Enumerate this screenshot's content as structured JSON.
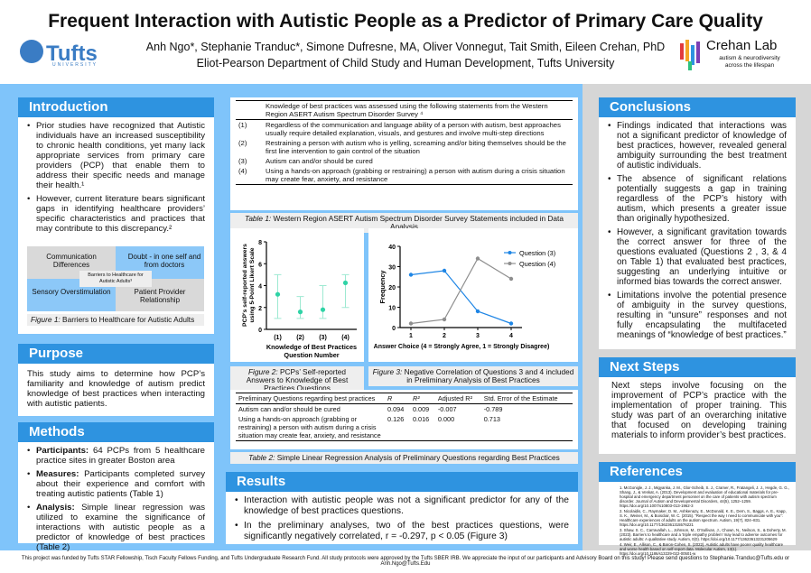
{
  "header": {
    "title": "Frequent Interaction with Autistic People as a Predictor of Primary Care Quality",
    "authors": "Anh Ngo*, Stephanie Tranduc*, Simone Dufresne, MA, Oliver Vonnegut, Tait Smith, Eileen Crehan, PhD",
    "department": "Eliot-Pearson Department of Child Study and Human Development, Tufts University",
    "tufts_logo": "Tufts",
    "tufts_sub": "UNIVERSITY",
    "lab_name": "Crehan Lab",
    "lab_tagline": "autism & neurodiversity across the lifespan"
  },
  "introduction": {
    "title": "Introduction",
    "bullets": [
      "Prior studies have recognized that Autistic individuals have an increased susceptibility to chronic health conditions, yet many lack appropriate services from primary care providers (PCP) that enable them to address their specific needs and manage their health.¹",
      "However, current literature bears significant gaps in identifying healthcare providers’ specific characteristics and practices that may contribute to this discrepancy.²"
    ],
    "figure": {
      "tl": "Communication Differences",
      "tr": "Doubt - in one self and from doctors",
      "center": "Barriers to Healthcare for Autistic Adults³",
      "bl": "Sensory Overstimulation",
      "br": "Patient Provider Relationship"
    },
    "caption_label": "Figure 1:",
    "caption": " Barriers to Healthcare for Autistic Adults"
  },
  "purpose": {
    "title": "Purpose",
    "text": "This study aims to determine how PCP’s familiarity and knowledge of autism predict knowledge of best practices when interacting with autistic patients."
  },
  "methods": {
    "title": "Methods",
    "items": [
      {
        "label": "Participants:",
        "text": " 64 PCPs from 5 healthcare practice sites in greater Boston area"
      },
      {
        "label": "Measures:",
        "text": " Participants completed survey about their experience and comfort with treating autistic patients (Table 1)"
      },
      {
        "label": "Analysis:",
        "text": " Simple linear regression was utilized to examine the significance of interactions with autistic people as a predictor of knowledge of best practices (Table 2)"
      }
    ]
  },
  "table1": {
    "header": "Knowledge of best practices was assessed using the following statements from the Western Region ASERT Autism Spectrum Disorder Survey ⁴",
    "rows": [
      {
        "n": "(1)",
        "t": "Regardless of the communication and language ability of a person with autism, best approaches usually require detailed explanation, visuals, and gestures and involve multi-step directions"
      },
      {
        "n": "(2)",
        "t": "Restraining a person with autism who is yelling, screaming and/or biting themselves should be the first line intervention to gain control of the situation"
      },
      {
        "n": "(3)",
        "t": "Autism can and/or should be cured"
      },
      {
        "n": "(4)",
        "t": "Using a hands-on approach (grabbing or restraining) a person with autism during a crisis situation may create fear, anxiety, and resistance"
      }
    ],
    "caption_label": "Table 1:",
    "caption": " Western Region ASERT Autism Spectrum Disorder Survey Statements included in Data Analysis"
  },
  "chart_data": [
    {
      "type": "scatter",
      "title": "",
      "ylabel": "PCP's self-reported answers using 5-Point Likert Scale",
      "xlabel": "Knowledge of Best Practices Question Number",
      "categories": [
        "(1)",
        "(2)",
        "(3)",
        "(4)"
      ],
      "values": [
        3.2,
        1.6,
        1.8,
        4.25
      ],
      "error_low": [
        1,
        1,
        1,
        2
      ],
      "error_high": [
        5,
        3,
        4,
        5
      ],
      "ylim": [
        0,
        8
      ],
      "yticks": [
        "0",
        "2",
        "4",
        "6",
        "8"
      ],
      "color": "#2fd3a6"
    },
    {
      "type": "line",
      "title": "",
      "ylabel": "Frequency",
      "xlabel": "Answer Choice (4 = Strongly Agree, 1 = Strongly Disagree)",
      "x": [
        1,
        2,
        3,
        4
      ],
      "xticks": [
        "1",
        "2",
        "3",
        "4"
      ],
      "ylim": [
        0,
        40
      ],
      "yticks": [
        "0",
        "10",
        "20",
        "30",
        "40"
      ],
      "legend": "top-right",
      "series": [
        {
          "name": "Question (3)",
          "values": [
            26,
            28,
            8,
            2
          ],
          "color": "#1f86e5"
        },
        {
          "name": "Question (4)",
          "values": [
            2,
            4,
            34,
            24
          ],
          "color": "#8e8e8e"
        }
      ]
    }
  ],
  "fig2": {
    "caption_label": "Figure 2:",
    "caption": " PCPs’ Self-reported Answers to Knowledge of Best Practices Questions"
  },
  "fig3": {
    "caption_label": "Figure 3:",
    "caption": " Negative Correlation of Questions 3 and 4 included in Preliminary Analysis of Best Practices"
  },
  "table2": {
    "headers": [
      "Preliminary Questions regarding best practices",
      "R",
      "R²",
      "Adjusted R²",
      "Std. Error of the Estimate"
    ],
    "rows": [
      [
        "Autism can and/or should be cured",
        "0.094",
        "0.009",
        "-0.007",
        "-0.789"
      ],
      [
        "Using a hands-on approach (grabbing or restraining) a person with autism during a crisis situation may create fear, anxiety, and resistance",
        "0.126",
        "0.016",
        "0.000",
        "0.713"
      ]
    ],
    "caption_label": "Table 2:",
    "caption": " Simple Linear Regression Analysis of Preliminary Questions regarding Best Practices"
  },
  "results": {
    "title": "Results",
    "bullets": [
      "Interaction with autistic people was not a significant predictor for any of the knowledge of best practices questions.",
      "In the preliminary analyses, two of the best practices questions, were significantly negatively correlated, r = -0.297, p < 0.05 (Figure 3)"
    ]
  },
  "conclusions": {
    "title": "Conclusions",
    "bullets": [
      "Findings indicated that interactions was not a significant predictor of knowledge of best practices, however, revealed general ambiguity surrounding the best treatment of autistic individuals.",
      "The absence of significant relations potentially suggests a gap in training regardless of the PCP’s history with autism, which presents a greater issue than originally hypothesized.",
      "However, a significant gravitation towards the correct answer for three of the questions evaluated (Questions 2 , 3, & 4 on Table 1) that evaluated best practices, suggesting an underlying intuitive or informed bias towards the correct answer.",
      "Limitations involve the potential presence of ambiguity in the survey questions, resulting in “unsure” responses and not fully encapsulating the multifaceted meanings of “knowledge of best practices.”"
    ]
  },
  "next_steps": {
    "title": "Next Steps",
    "text": "Next steps involve focusing on the improvement of PCP’s practice with the implementation of proper training. This study was part of an overarching initative that focused on developing training materials to inform provider’s best practices."
  },
  "references": {
    "title": "References",
    "items": [
      "1. McGonigle, J. J., Migyanka, J. M., Glor-Scheib, S. J., Cramer, R., Fratangeli, J. J., Hegde, G. G., Shang, J., & Venkat, A. (2013). Development and evaluation of educational materials for pre-hospital and emergency department personnel on the care of patients with autism spectrum disorder. Journal of Autism and Developmental Disorders, 44(5), 1252–1259. https://doi.org/10.1007/s10803-013-1962-3",
      "2. Nicolaidis, C., Raymaker, D. M., Ashkenazy, E., McDonald, K. E., Dern, S., Baggs, A. E., Kapp, S. K., Weiner, M., & Boisclair, W. C. (2015). “Respect the way I need to communicate with you”: Healthcare experiences of adults on the autism spectrum. Autism, 19(7), 824–831. https://doi.org/10.1177/1362361315576221",
      "3. Shaw, S. C., Carravallah, L., Johnson, M., O’Sullivan, J., Chown, N., Neilson, S., & Doherty, M. (2023). Barriers to healthcare and a ‘triple empathy problem’ may lead to adverse outcomes for autistic adults: A qualitative study. Autism, 0(0). https://doi.org/10.1177/13623613231205629",
      "4. Weir, E., Allison, C., & Baron-Cohen, S. (2022). Autistic adults have poorer quality healthcare and worse health based on self-report data. Molecular Autism, 13(1). https://doi.org/10.1186/s13229-022-00501-w"
    ]
  },
  "footer": "This project was funded by Tufts STAR Fellowship, Tisch Faculty Fellows Funding, and Tufts Undergraduate Research Fund. All study protocols were approved by the Tufts SBER IRB. We appreciate the input of our participants and Advisory Board on this study! Please send questions to Stephanie.Tranduc@Tufts.edu or Anh.Ngo@Tufts.Edu"
}
